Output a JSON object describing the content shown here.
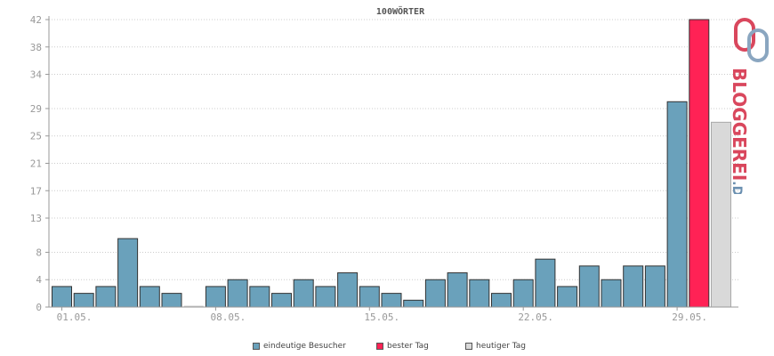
{
  "chart_data": {
    "type": "bar",
    "title": "100WÖRTER",
    "ylim": [
      0,
      42
    ],
    "y_ticks": [
      0,
      4,
      8,
      13,
      17,
      21,
      25,
      29,
      34,
      38,
      42
    ],
    "x_tick_labels": [
      {
        "index": 0,
        "label": "01.05."
      },
      {
        "index": 7,
        "label": "08.05."
      },
      {
        "index": 14,
        "label": "15.05."
      },
      {
        "index": 21,
        "label": "22.05."
      },
      {
        "index": 28,
        "label": "29.05."
      }
    ],
    "grid": true,
    "series": [
      {
        "name": "eindeutige Besucher",
        "color": "#6aa1bb",
        "values": [
          3,
          2,
          3,
          10,
          3,
          2,
          0,
          3,
          4,
          3,
          2,
          4,
          3,
          5,
          3,
          2,
          1,
          4,
          5,
          4,
          2,
          4,
          7,
          3,
          6,
          4,
          6,
          6,
          30,
          0,
          0
        ]
      },
      {
        "name": "bester Tag",
        "color": "#ff2255",
        "values": [
          0,
          0,
          0,
          0,
          0,
          0,
          0,
          0,
          0,
          0,
          0,
          0,
          0,
          0,
          0,
          0,
          0,
          0,
          0,
          0,
          0,
          0,
          0,
          0,
          0,
          0,
          0,
          0,
          0,
          42,
          0
        ]
      },
      {
        "name": "heutiger Tag",
        "color": "#d9d9d9",
        "values": [
          0,
          0,
          0,
          0,
          0,
          0,
          0,
          0,
          0,
          0,
          0,
          0,
          0,
          0,
          0,
          0,
          0,
          0,
          0,
          0,
          0,
          0,
          0,
          0,
          0,
          0,
          0,
          0,
          0,
          0,
          27
        ]
      }
    ],
    "legend_position": "bottom"
  },
  "logo": {
    "text_main": "BLOGGEREI",
    "text_suffix": ".DE",
    "color_main": "#d9475d",
    "color_suffix": "#6a8fb0"
  }
}
